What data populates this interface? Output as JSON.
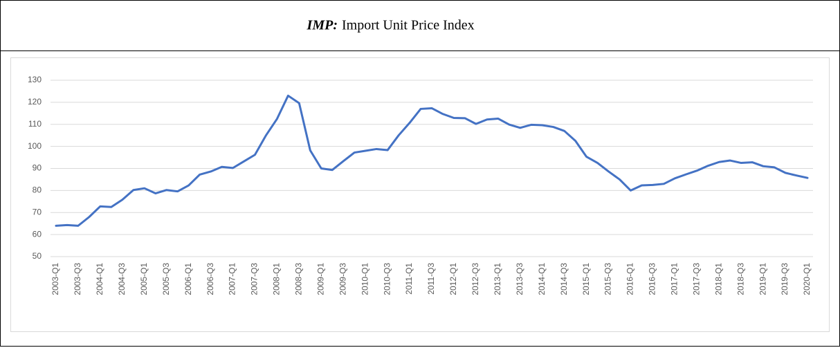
{
  "chart_data": {
    "type": "line",
    "title_abbr": "IMP:",
    "title": "Import Unit Price Index",
    "categories": [
      "2003-Q1",
      null,
      "2003-Q3",
      null,
      "2004-Q1",
      null,
      "2004-Q3",
      null,
      "2005-Q1",
      null,
      "2005-Q3",
      null,
      "2006-Q1",
      null,
      "2006-Q3",
      null,
      "2007-Q1",
      null,
      "2007-Q3",
      null,
      "2008-Q1",
      null,
      "2008-Q3",
      null,
      "2009-Q1",
      null,
      "2009-Q3",
      null,
      "2010-Q1",
      null,
      "2010-Q3",
      null,
      "2011-Q1",
      null,
      "2011-Q3",
      null,
      "2012-Q1",
      null,
      "2012-Q3",
      null,
      "2013-Q1",
      null,
      "2013-Q3",
      null,
      "2014-Q1",
      null,
      "2014-Q3",
      null,
      "2015-Q1",
      null,
      "2015-Q3",
      null,
      "2016-Q1",
      null,
      "2016-Q3",
      null,
      "2017-Q1",
      null,
      "2017-Q3",
      null,
      "2018-Q1",
      null,
      "2018-Q3",
      null,
      "2019-Q1",
      null,
      "2019-Q3",
      null,
      "2020-Q1"
    ],
    "values": [
      64,
      64.3,
      64,
      68,
      72.8,
      72.5,
      75.8,
      80.2,
      81,
      78.7,
      80.2,
      79.6,
      82.3,
      87.2,
      88.6,
      90.7,
      90.2,
      93.2,
      96.2,
      105,
      112.5,
      123,
      119.6,
      98.2,
      90,
      89.3,
      93.3,
      97.2,
      98,
      98.8,
      98.3,
      105,
      110.7,
      117,
      117.3,
      114.7,
      112.9,
      112.8,
      110.2,
      112.2,
      112.6,
      109.9,
      108.4,
      109.8,
      109.6,
      108.8,
      107,
      102.5,
      95.3,
      92.5,
      88.6,
      85,
      80,
      82.3,
      82.5,
      83,
      85.5,
      87.3,
      89,
      91.2,
      92.9,
      93.6,
      92.5,
      92.8,
      91,
      90.5,
      88,
      86.8,
      85.7
    ],
    "color": "#4472c4",
    "ylim": [
      50,
      130
    ],
    "yticks": [
      50,
      60,
      70,
      80,
      90,
      100,
      110,
      120,
      130
    ],
    "grid": true
  }
}
